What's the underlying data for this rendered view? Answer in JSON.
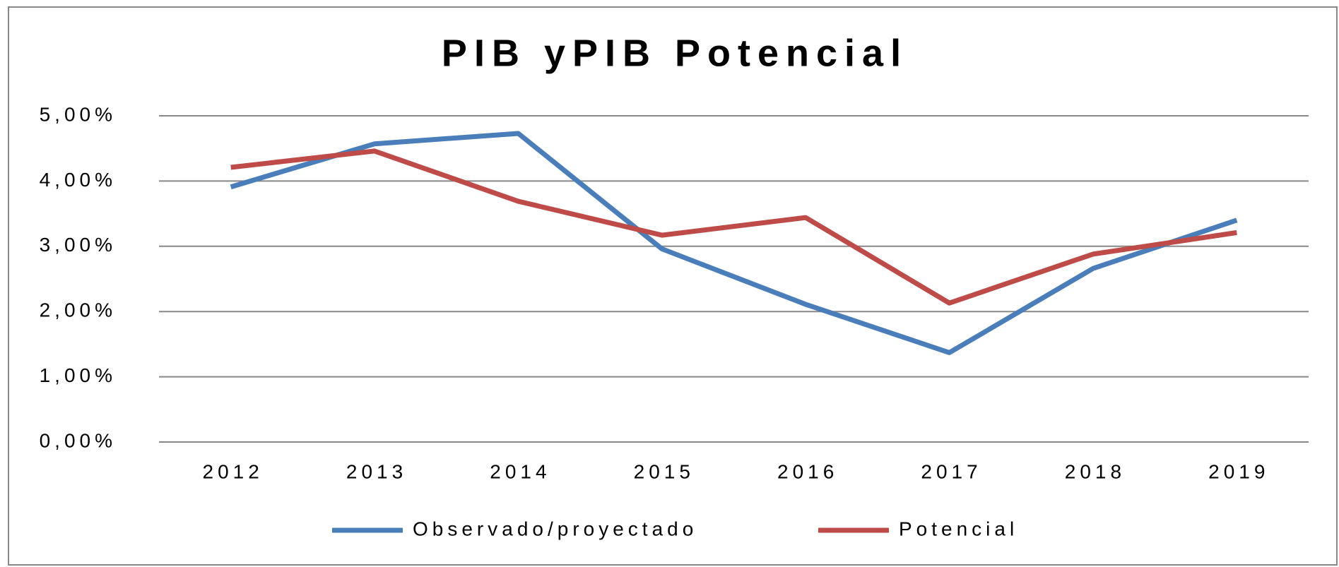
{
  "chart_data": {
    "type": "line",
    "title": "PIB yPIB Potencial",
    "categories": [
      "2012",
      "2013",
      "2014",
      "2015",
      "2016",
      "2017",
      "2018",
      "2019"
    ],
    "series": [
      {
        "name": "Observado/proyectado",
        "color": "#4a7ebb",
        "values": [
          3.91,
          4.57,
          4.73,
          2.96,
          2.11,
          1.37,
          2.66,
          3.4
        ]
      },
      {
        "name": "Potencial",
        "color": "#be4b48",
        "values": [
          4.21,
          4.46,
          3.69,
          3.17,
          3.44,
          2.13,
          2.88,
          3.21
        ]
      }
    ],
    "ylim": [
      0,
      5
    ],
    "yticks": [
      {
        "value": 0,
        "label": "0,00%"
      },
      {
        "value": 1,
        "label": "1,00%"
      },
      {
        "value": 2,
        "label": "2,00%"
      },
      {
        "value": 3,
        "label": "3,00%"
      },
      {
        "value": 4,
        "label": "4,00%"
      },
      {
        "value": 5,
        "label": "5,00%"
      }
    ],
    "grid": true,
    "legend": "bottom"
  }
}
